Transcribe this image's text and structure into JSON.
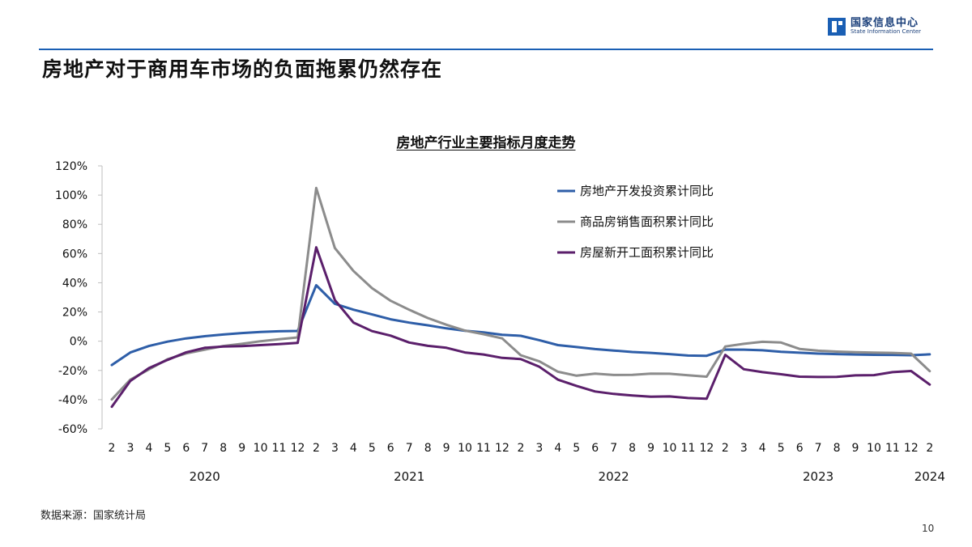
{
  "logo": {
    "name_cn": "国家信息中心",
    "name_en": "State Information Center"
  },
  "title": "房地产对于商用车市场的负面拖累仍然存在",
  "source": "数据来源：国家统计局",
  "page_number": "10",
  "colors": {
    "accent": "#1a5fb4",
    "series_investment": "#2e5ea8",
    "series_sales": "#8c8c8c",
    "series_starts": "#5b1f6b"
  },
  "chart_data": {
    "type": "line",
    "title": "房地产行业主要指标月度走势",
    "ylim": [
      -60,
      120
    ],
    "yticks": [
      -60,
      -40,
      -20,
      0,
      20,
      40,
      60,
      80,
      100,
      120
    ],
    "ytick_labels": [
      "-60%",
      "-40%",
      "-20%",
      "0%",
      "20%",
      "40%",
      "60%",
      "80%",
      "100%",
      "120%"
    ],
    "x": [
      "2020-02",
      "2020-03",
      "2020-04",
      "2020-05",
      "2020-06",
      "2020-07",
      "2020-08",
      "2020-09",
      "2020-10",
      "2020-11",
      "2020-12",
      "2021-02",
      "2021-03",
      "2021-04",
      "2021-05",
      "2021-06",
      "2021-07",
      "2021-08",
      "2021-09",
      "2021-10",
      "2021-11",
      "2021-12",
      "2022-02",
      "2022-03",
      "2022-04",
      "2022-05",
      "2022-06",
      "2022-07",
      "2022-08",
      "2022-09",
      "2022-10",
      "2022-11",
      "2022-12",
      "2023-02",
      "2023-03",
      "2023-04",
      "2023-05",
      "2023-06",
      "2023-07",
      "2023-08",
      "2023-09",
      "2023-10",
      "2023-11",
      "2023-12",
      "2024-02"
    ],
    "xtick_labels": [
      "2",
      "3",
      "4",
      "5",
      "6",
      "7",
      "8",
      "9",
      "10",
      "11",
      "12",
      "2",
      "3",
      "4",
      "5",
      "6",
      "7",
      "8",
      "9",
      "10",
      "11",
      "12",
      "2",
      "3",
      "4",
      "5",
      "6",
      "7",
      "8",
      "9",
      "10",
      "11",
      "12",
      "2",
      "3",
      "4",
      "5",
      "6",
      "7",
      "8",
      "9",
      "10",
      "11",
      "12",
      "2"
    ],
    "years": [
      {
        "label": "2020",
        "from": 0,
        "to": 10
      },
      {
        "label": "2021",
        "from": 11,
        "to": 21
      },
      {
        "label": "2022",
        "from": 22,
        "to": 32
      },
      {
        "label": "2023",
        "from": 33,
        "to": 43
      },
      {
        "label": "2024",
        "from": 44,
        "to": 44
      }
    ],
    "legend_position": "top-right",
    "grid": false,
    "series": [
      {
        "name": "房地产开发投资累计同比",
        "color": "#2e5ea8",
        "values": [
          -16.3,
          -7.7,
          -3.3,
          -0.3,
          1.9,
          3.4,
          4.6,
          5.6,
          6.3,
          6.8,
          7.0,
          38.3,
          25.6,
          21.6,
          18.3,
          15.0,
          12.7,
          10.9,
          8.8,
          7.2,
          6.0,
          4.4,
          3.7,
          0.7,
          -2.7,
          -4.0,
          -5.4,
          -6.4,
          -7.4,
          -8.0,
          -8.8,
          -9.8,
          -10.0,
          -5.7,
          -5.8,
          -6.2,
          -7.2,
          -7.9,
          -8.5,
          -8.8,
          -9.1,
          -9.3,
          -9.4,
          -9.6,
          -9.0
        ]
      },
      {
        "name": "商品房销售面积累计同比",
        "color": "#8c8c8c",
        "values": [
          -39.9,
          -26.3,
          -19.3,
          -12.3,
          -8.4,
          -5.8,
          -3.3,
          -1.8,
          -0.0,
          1.3,
          2.6,
          104.9,
          63.8,
          48.1,
          36.3,
          27.7,
          21.5,
          15.9,
          11.3,
          7.3,
          4.8,
          1.9,
          -9.6,
          -13.8,
          -20.9,
          -23.6,
          -22.2,
          -23.1,
          -23.0,
          -22.2,
          -22.3,
          -23.3,
          -24.3,
          -3.6,
          -1.8,
          -0.4,
          -0.9,
          -5.3,
          -6.5,
          -7.1,
          -7.5,
          -7.8,
          -8.0,
          -8.5,
          -20.5
        ]
      },
      {
        "name": "房屋新开工面积累计同比",
        "color": "#5b1f6b",
        "values": [
          -44.9,
          -27.2,
          -18.4,
          -12.8,
          -7.6,
          -4.5,
          -3.6,
          -3.4,
          -2.7,
          -2.0,
          -1.2,
          64.3,
          28.2,
          12.8,
          6.9,
          3.8,
          -0.9,
          -3.2,
          -4.5,
          -7.7,
          -9.1,
          -11.4,
          -12.2,
          -17.5,
          -26.3,
          -30.6,
          -34.4,
          -36.1,
          -37.2,
          -38.0,
          -37.8,
          -38.9,
          -39.4,
          -9.4,
          -19.2,
          -21.2,
          -22.6,
          -24.3,
          -24.5,
          -24.4,
          -23.4,
          -23.2,
          -21.2,
          -20.4,
          -29.7
        ]
      }
    ]
  }
}
